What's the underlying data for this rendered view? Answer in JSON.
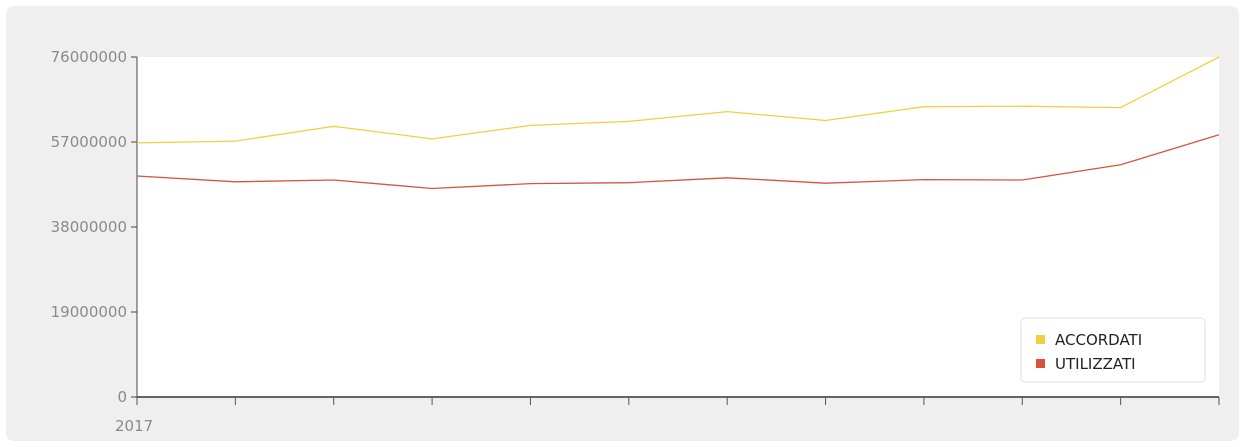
{
  "chart_data": {
    "type": "line",
    "x_tick_labels": [
      "2017",
      "",
      "",
      "",
      "",
      "",
      "",
      "",
      "",
      "",
      "",
      ""
    ],
    "y_ticks": [
      0,
      19000000,
      38000000,
      57000000,
      76000000
    ],
    "y_tick_labels": [
      "0",
      "19000000",
      "38000000",
      "57000000",
      "76000000"
    ],
    "ylim": [
      0,
      76000000
    ],
    "series": [
      {
        "name": "ACCORDATI",
        "color": "#f0d040",
        "values": [
          56800000,
          57200000,
          60500000,
          57700000,
          60700000,
          61600000,
          63800000,
          61800000,
          64900000,
          65000000,
          64700000,
          76000000
        ]
      },
      {
        "name": "UTILIZZATI",
        "color": "#d9533a",
        "values": [
          49400000,
          48100000,
          48500000,
          46600000,
          47700000,
          47900000,
          49000000,
          47800000,
          48600000,
          48500000,
          51900000,
          58600000
        ]
      }
    ],
    "legend": "bottom-right",
    "grid": false
  }
}
